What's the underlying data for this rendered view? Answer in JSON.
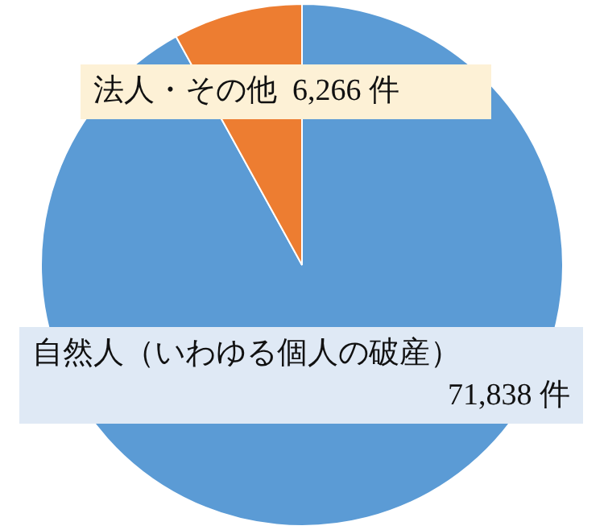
{
  "chart_data": {
    "type": "pie",
    "categories": [
      "自然人（いわゆる個人の破産）",
      "法人・その他"
    ],
    "values": [
      71838,
      6266
    ],
    "colors": [
      "#5b9bd5",
      "#ed7d31"
    ],
    "value_labels": [
      "71,838 件",
      "6,266 件"
    ]
  }
}
